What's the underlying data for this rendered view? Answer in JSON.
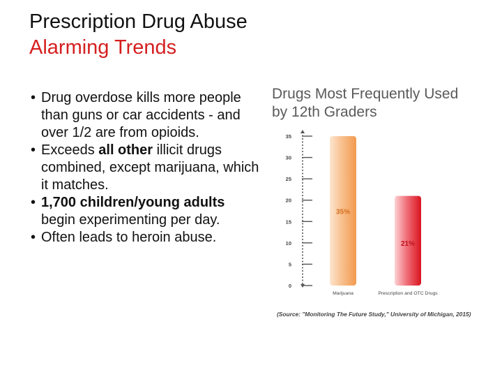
{
  "slide": {
    "title": "Prescription Drug Abuse",
    "subtitle": "Alarming Trends"
  },
  "bullets": [
    {
      "parts": [
        {
          "t": "Drug overdose kills more people than guns or car accidents - and over 1/2 are from opioids.",
          "b": false
        }
      ]
    },
    {
      "parts": [
        {
          "t": "Exceeds ",
          "b": false
        },
        {
          "t": "all other",
          "b": true
        },
        {
          "t": " illicit drugs combined, except marijuana, which it matches.",
          "b": false
        }
      ]
    },
    {
      "parts": [
        {
          "t": "1,700 children/young adults",
          "b": true
        },
        {
          "t": " begin experimenting per day.",
          "b": false
        }
      ]
    },
    {
      "parts": [
        {
          "t": "Often leads to heroin abuse.",
          "b": false
        }
      ]
    }
  ],
  "chart_data": {
    "type": "bar",
    "title_lines": [
      "Drugs Most Frequently Used",
      "by 12th Graders"
    ],
    "categories": [
      "Marijuana",
      "Prescription and OTC Drugs"
    ],
    "values": [
      35,
      21
    ],
    "value_labels": [
      "35%",
      "21%"
    ],
    "ylim": [
      0,
      35
    ],
    "yticks": [
      0,
      5,
      10,
      15,
      20,
      25,
      30,
      35
    ],
    "grid": false,
    "colors": [
      "#f6b37a",
      "#e8333a"
    ],
    "source": "(Source: \"Monitoring The Future Study,\" University of Michigan, 2015)"
  }
}
